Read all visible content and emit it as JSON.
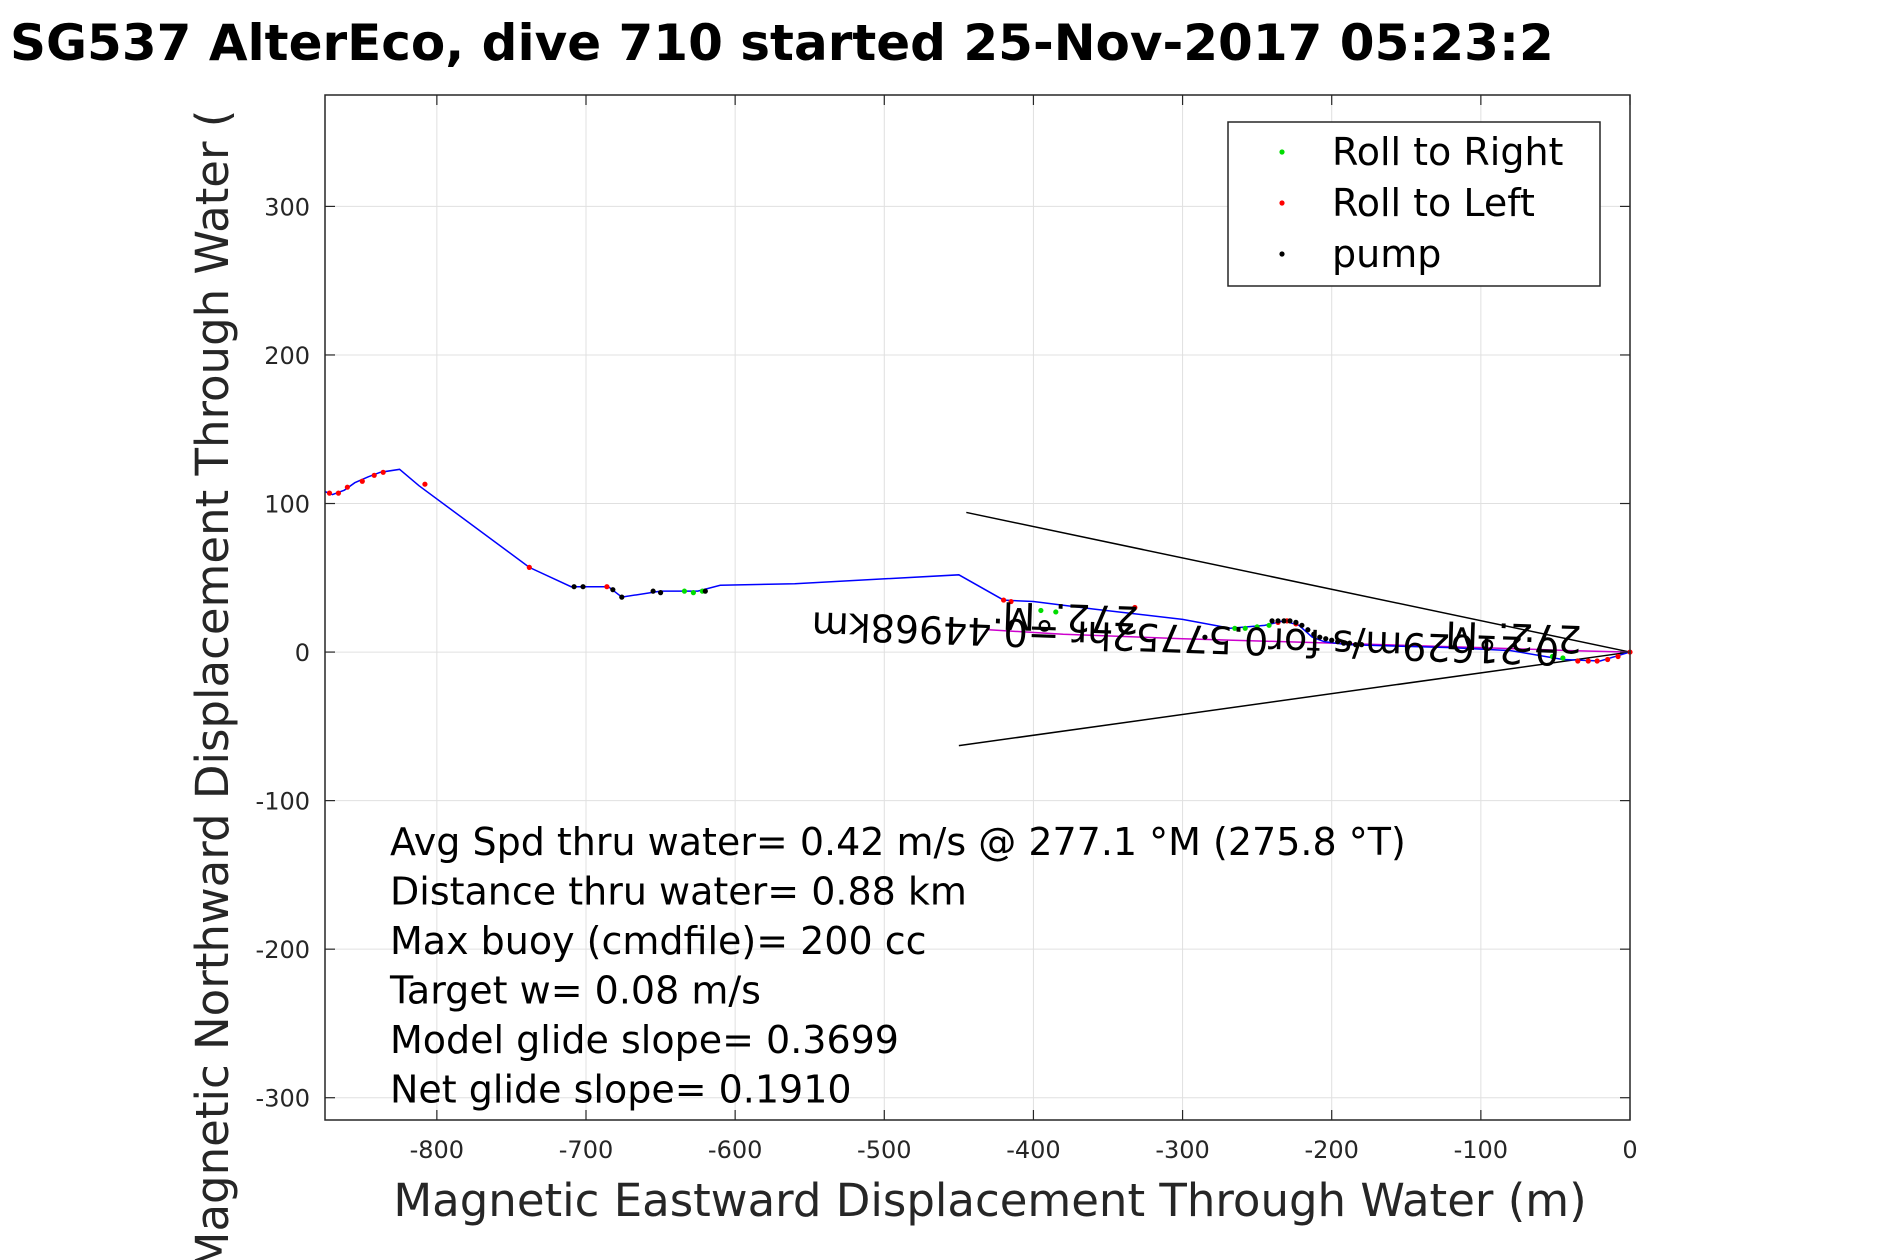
{
  "chart_data": {
    "type": "scatter",
    "title": "SG537 AlterEco, dive 710 started 25-Nov-2017 05:23:2",
    "xlabel": "Magnetic Eastward Displacement Through Water (m)",
    "ylabel": "Magnetic Northward Displacement Through Water (",
    "xlim": [
      -875,
      0
    ],
    "ylim": [
      -315,
      375
    ],
    "grid": true,
    "legend_position": "top-right",
    "xticks": [
      -800,
      -700,
      -600,
      -500,
      -400,
      -300,
      -200,
      -100,
      0
    ],
    "yticks": [
      -300,
      -200,
      -100,
      0,
      100,
      200,
      300
    ],
    "colors": {
      "track": "#0000ff",
      "model": "#cc00cc",
      "roll_right": "#00dd00",
      "roll_left": "#ff0000",
      "pump": "#000000",
      "cone": "#000000"
    },
    "legend": [
      {
        "name": "Roll to Right",
        "color": "#00dd00"
      },
      {
        "name": "Roll to Left",
        "color": "#ff0000"
      },
      {
        "name": "pump",
        "color": "#000000"
      }
    ],
    "track": {
      "x": [
        -875,
        -870,
        -862,
        -855,
        -846,
        -838,
        -825,
        -812,
        -738,
        -710,
        -700,
        -685,
        -676,
        -650,
        -640,
        -625,
        -610,
        -560,
        -450,
        -420,
        -400,
        -360,
        -300,
        -268,
        -245,
        -232,
        -222,
        -213,
        -205,
        -190,
        -120,
        -80,
        -45,
        -20,
        0
      ],
      "y": [
        108,
        106,
        109,
        114,
        118,
        121,
        123,
        112,
        57,
        44,
        44,
        44,
        37,
        41,
        41,
        41,
        45,
        46,
        52,
        35,
        34,
        29,
        22,
        16,
        18,
        21,
        18,
        10,
        7,
        5,
        3,
        1,
        -5,
        -6,
        0
      ]
    },
    "model_line": {
      "x": [
        -430,
        -380,
        -300,
        -200,
        -100,
        -40,
        0
      ],
      "y": [
        15,
        12,
        9,
        6,
        3,
        1,
        0
      ]
    },
    "cone_lines": [
      {
        "x": [
          -445,
          0
        ],
        "y": [
          94,
          0
        ]
      },
      {
        "x": [
          -450,
          0
        ],
        "y": [
          -63,
          0
        ]
      }
    ],
    "series": [
      {
        "name": "Roll to Right",
        "x": [
          -634,
          -628,
          -622,
          -395,
          -385,
          -265,
          -258,
          -250,
          -242,
          -52,
          -45
        ],
        "y": [
          41,
          40,
          41,
          28,
          27,
          16,
          16,
          17,
          18,
          -3,
          -4
        ]
      },
      {
        "name": "Roll to Left",
        "x": [
          -872,
          -866,
          -860,
          -850,
          -842,
          -836,
          -808,
          -738,
          -686,
          -420,
          -415,
          -332,
          -236,
          -230,
          -224,
          -35,
          -28,
          -22,
          -15,
          -8,
          0
        ],
        "y": [
          107,
          107,
          111,
          115,
          119,
          121,
          113,
          57,
          44,
          35,
          34,
          30,
          20,
          21,
          19,
          -6,
          -6,
          -6,
          -5,
          -3,
          0
        ]
      },
      {
        "name": "pump",
        "x": [
          -708,
          -702,
          -682,
          -676,
          -655,
          -650,
          -620,
          -285,
          -240,
          -236,
          -232,
          -228,
          -224,
          -220,
          -216,
          -212,
          -208,
          -204,
          -200,
          -196,
          -192,
          -188,
          -184,
          -180
        ],
        "y": [
          44,
          44,
          42,
          37,
          41,
          40,
          41,
          10,
          21,
          21,
          21,
          21,
          20,
          18,
          15,
          12,
          10,
          9,
          8,
          7,
          6,
          6,
          5,
          5
        ]
      }
    ],
    "annotations": [
      {
        "text": "0.21629m/s for0.57752hr =0.44968km",
        "x": -298,
        "y": 11,
        "rotation_deg": 182
      },
      {
        "text": "272.°M",
        "x": -375,
        "y": 25,
        "rotation_deg": 182
      },
      {
        "text": "272.°M",
        "x": -78,
        "y": 12,
        "rotation_deg": 182
      }
    ],
    "stats": [
      "Avg Spd thru water=  0.42 m/s @ 277.1 °M (275.8 °T)",
      "Distance thru water=  0.88 km",
      "Max buoy (cmdfile)= 200 cc",
      "Target w= 0.08 m/s",
      "Model glide slope= 0.3699",
      "Net glide slope= 0.1910"
    ]
  }
}
